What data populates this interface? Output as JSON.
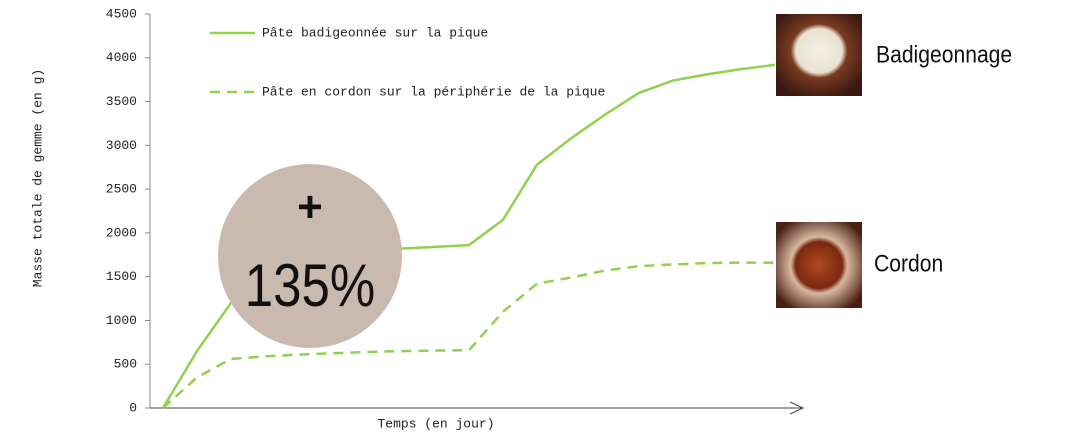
{
  "chart_data": {
    "type": "line",
    "y_label": "Masse totale de gemme (en g)",
    "x_label": "Temps (en jour)",
    "categories": [
      null,
      null,
      null,
      null,
      null,
      null,
      null,
      null,
      null,
      null,
      null,
      null,
      null,
      null,
      null,
      null,
      null,
      null,
      null
    ],
    "series": [
      {
        "name": "Pâte badigeonnée sur la pique",
        "color": "#92d050",
        "dash": false,
        "values": [
          0,
          650,
          1200,
          1550,
          1730,
          1770,
          1800,
          1820,
          1840,
          1860,
          2150,
          2780,
          3080,
          3350,
          3600,
          3740,
          3810,
          3870,
          3920
        ]
      },
      {
        "name": "Pâte en cordon sur la périphérie de la pique",
        "color": "#92d050",
        "dash": true,
        "values": [
          0,
          350,
          560,
          590,
          610,
          625,
          640,
          650,
          655,
          660,
          1100,
          1420,
          1490,
          1570,
          1620,
          1640,
          1655,
          1660,
          1660
        ]
      }
    ],
    "ylim": [
      0,
      4500
    ],
    "yticks": [
      0,
      500,
      1000,
      1500,
      2000,
      2500,
      3000,
      3500,
      4000,
      4500
    ],
    "annotation": {
      "sign": "+",
      "text": "135%"
    },
    "image_labels": [
      "Badigeonnage",
      "Cordon"
    ]
  }
}
